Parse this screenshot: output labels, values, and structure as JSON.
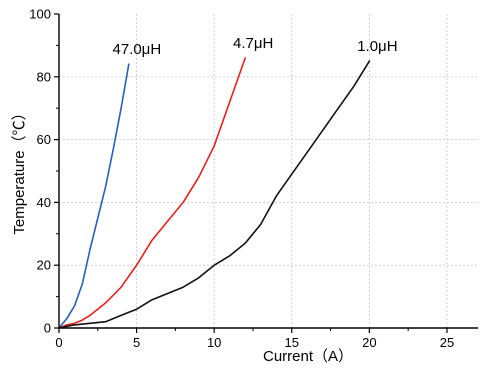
{
  "chart_data": {
    "type": "line",
    "title": "",
    "xlabel": "Current（A）",
    "ylabel": "Temperature（℃）",
    "xlim": [
      0,
      27
    ],
    "ylim": [
      0,
      100
    ],
    "xticks": [
      "0",
      "5",
      "10",
      "15",
      "20",
      "25"
    ],
    "yticks": [
      "0",
      "20",
      "40",
      "60",
      "80",
      "100"
    ],
    "grid": true,
    "legend": "none",
    "series": [
      {
        "name": "47.0μH",
        "color": "#2b5fb5",
        "x": [
          0,
          0.5,
          1,
          1.5,
          2,
          2.5,
          3,
          3.5,
          4,
          4.5
        ],
        "y": [
          0,
          3,
          7,
          14,
          25,
          35,
          45,
          57,
          70,
          84
        ]
      },
      {
        "name": "4.7μH",
        "color": "#e8201f",
        "x": [
          0,
          0.5,
          1,
          1.5,
          2,
          3,
          4,
          5,
          6,
          7,
          8,
          9,
          10,
          11,
          12
        ],
        "y": [
          0,
          1,
          1.5,
          2.5,
          4,
          8,
          13,
          20,
          28,
          34,
          40,
          48,
          58,
          72,
          86
        ]
      },
      {
        "name": "1.0μH",
        "color": "#111111",
        "x": [
          0,
          0.5,
          1,
          2,
          3,
          4,
          5,
          6,
          7,
          8,
          9,
          10,
          11,
          12,
          13,
          14,
          15,
          16,
          17,
          18,
          19,
          20
        ],
        "y": [
          0,
          0.5,
          1,
          1.5,
          2,
          4,
          6,
          9,
          11,
          13,
          16,
          20,
          23,
          27,
          33,
          42,
          49,
          56,
          63,
          70,
          77,
          85
        ]
      }
    ]
  }
}
